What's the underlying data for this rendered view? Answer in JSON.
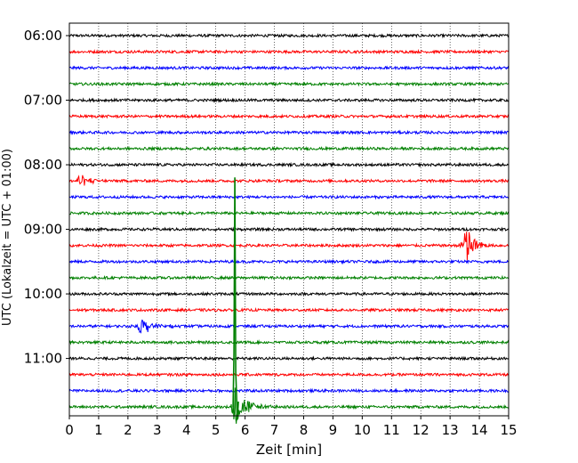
{
  "chart_data": {
    "type": "line",
    "title": "",
    "xlabel": "Zeit  [min]",
    "ylabel": "UTC (Lokalzeit = UTC + 01:00)",
    "xlim": [
      0,
      15
    ],
    "x_ticks": [
      "0",
      "1",
      "2",
      "3",
      "4",
      "5",
      "6",
      "7",
      "8",
      "9",
      "10",
      "11",
      "12",
      "13",
      "14",
      "15"
    ],
    "y_ticks": [
      {
        "label": "06:00",
        "row": 0
      },
      {
        "label": "07:00",
        "row": 4
      },
      {
        "label": "08:00",
        "row": 8
      },
      {
        "label": "09:00",
        "row": 12
      },
      {
        "label": "10:00",
        "row": 16
      },
      {
        "label": "11:00",
        "row": 20
      }
    ],
    "trace_interval_minutes": 15,
    "rows": 24,
    "grid": "vertical dotted at each minute",
    "colors": [
      "#000000",
      "#ff0000",
      "#0000ff",
      "#008000"
    ],
    "events": [
      {
        "row": 9,
        "color": "#ff0000",
        "start_min": 0.2,
        "peak_min": 0.35,
        "amplitude": 0.45,
        "duration_min": 1.2
      },
      {
        "row": 13,
        "color": "#ff0000",
        "start_min": 13.3,
        "peak_min": 13.6,
        "amplitude": 1.25,
        "duration_min": 1.0
      },
      {
        "row": 18,
        "color": "#0000ff",
        "start_min": 2.3,
        "peak_min": 2.45,
        "amplitude": 0.55,
        "duration_min": 1.5
      },
      {
        "row": 23,
        "color": "#008000",
        "start_min": 5.5,
        "peak_min": 5.65,
        "amplitude": 1.3,
        "duration_min": 1.5,
        "spike": true
      }
    ]
  }
}
